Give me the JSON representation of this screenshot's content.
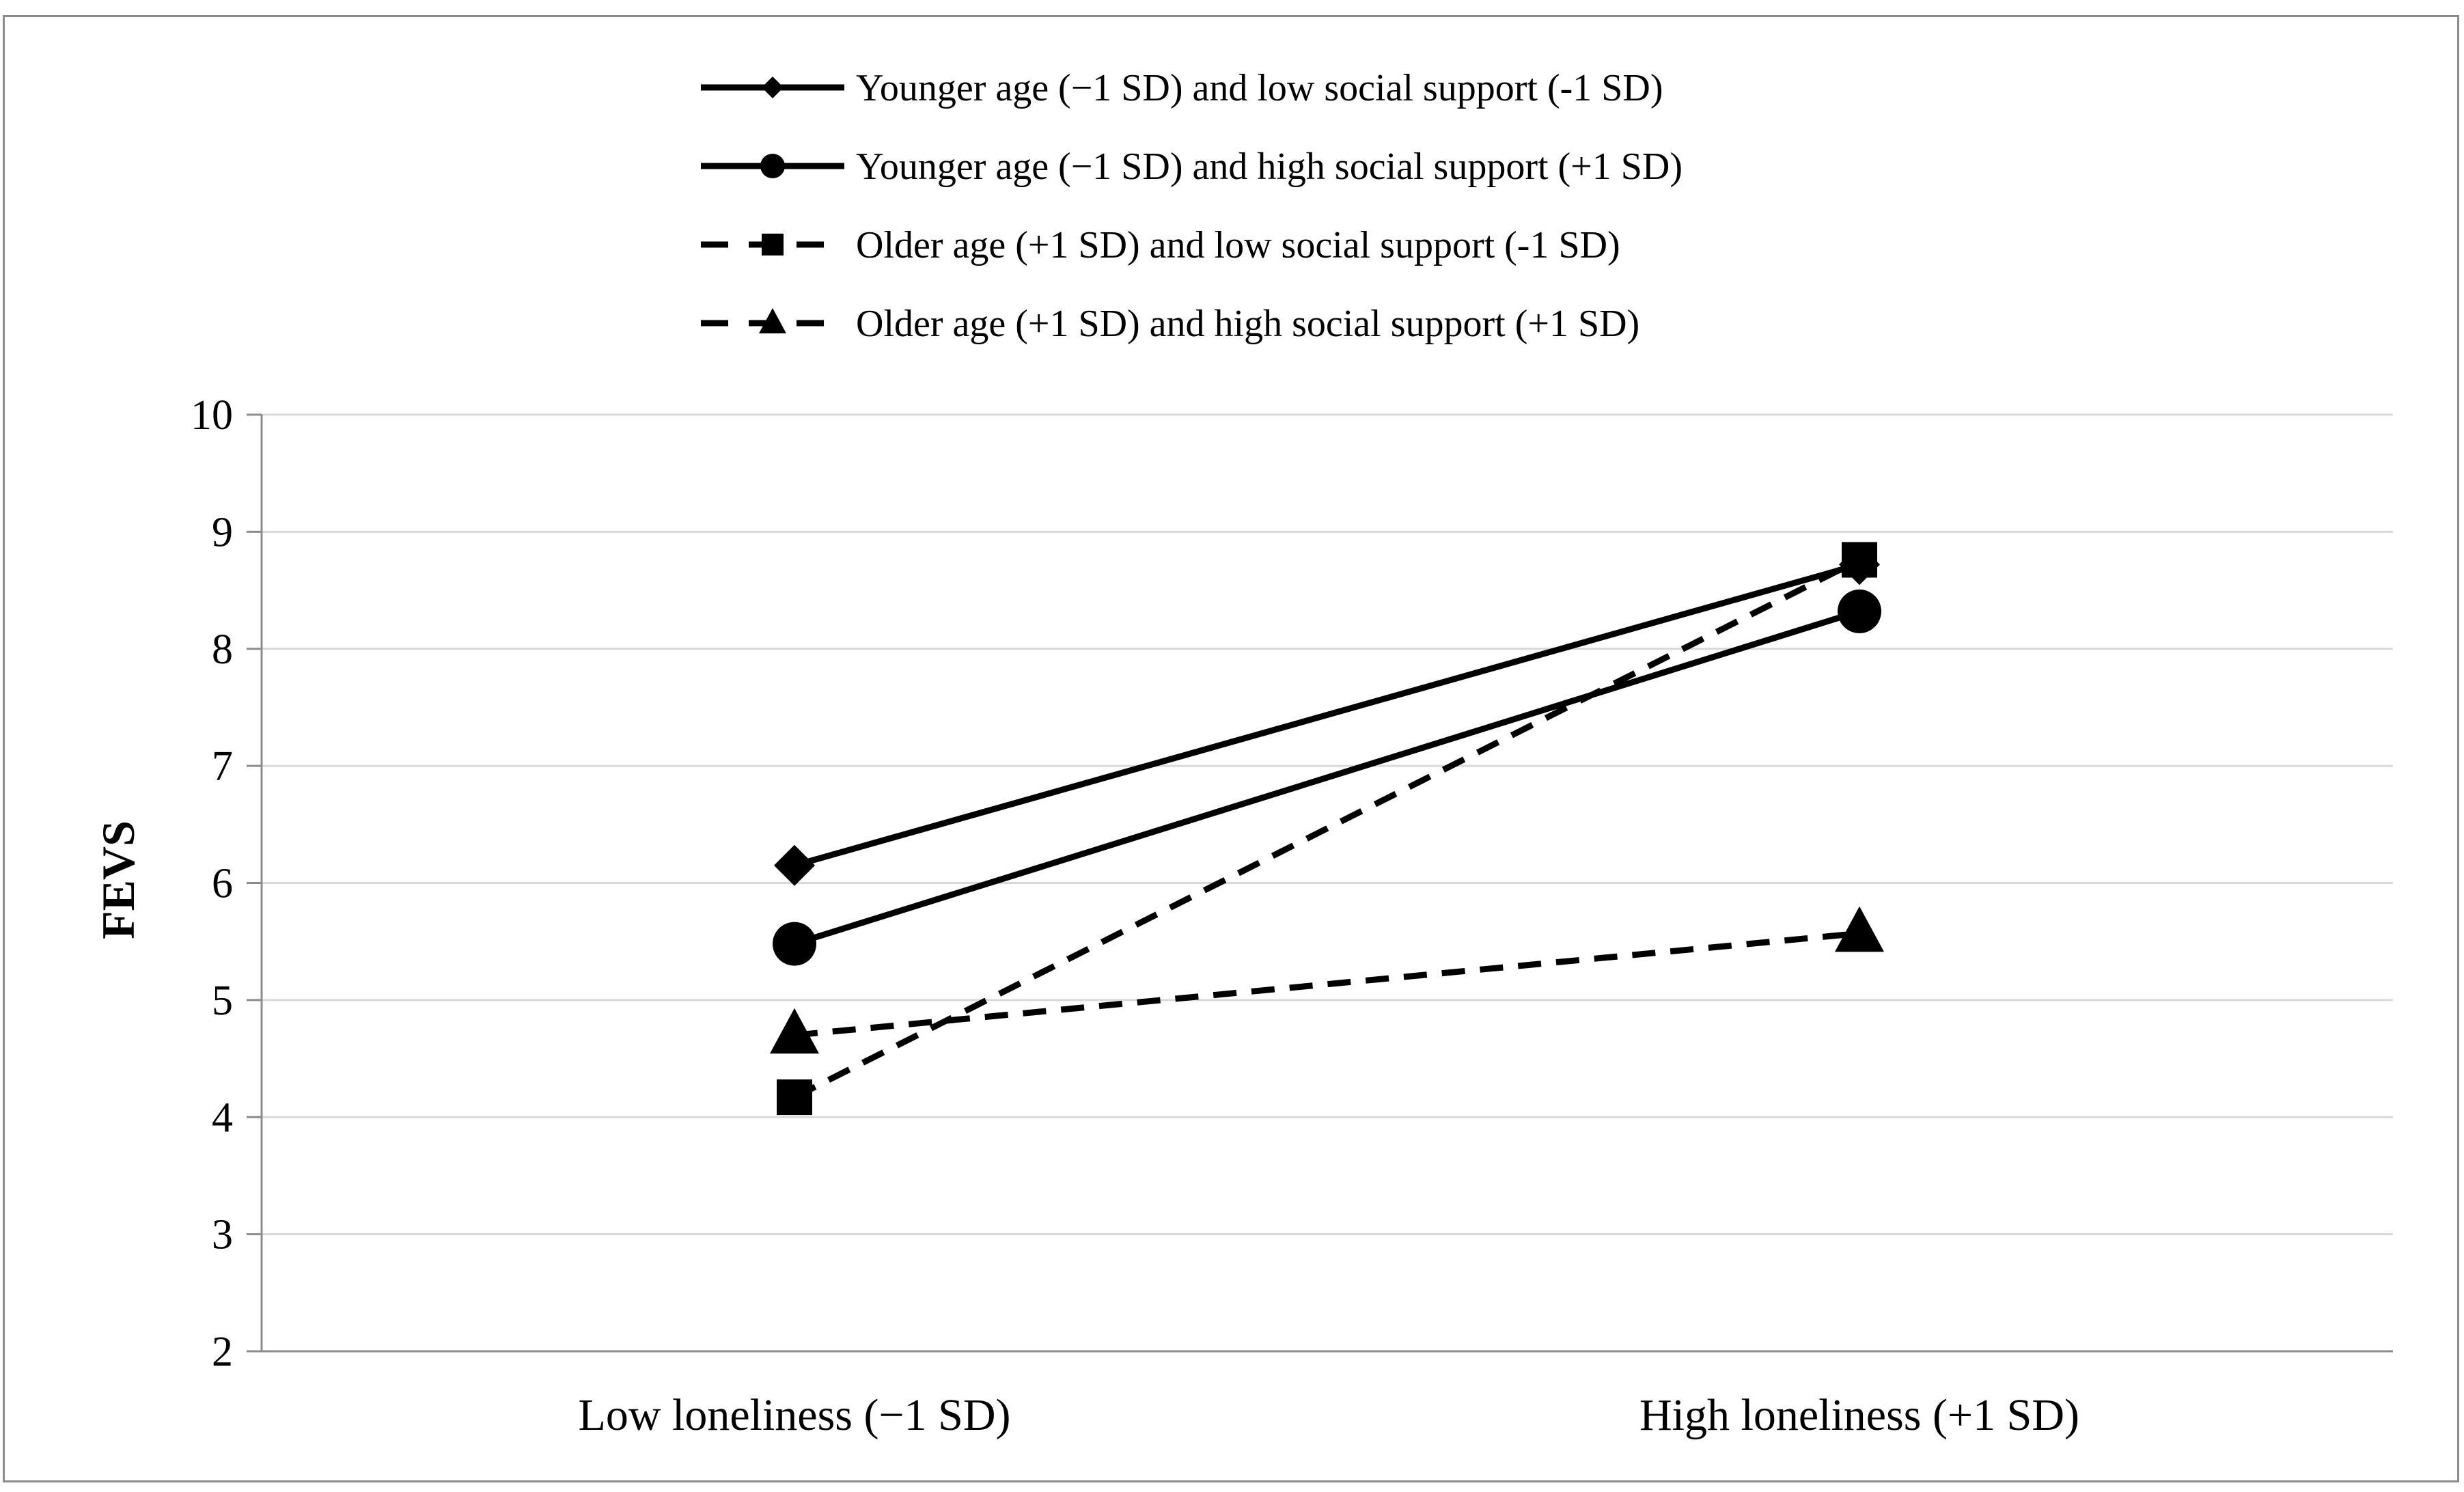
{
  "chart_data": {
    "type": "line",
    "title": "",
    "xlabel": "",
    "ylabel": "FEVS",
    "ylim": [
      2,
      10
    ],
    "yticks": [
      2,
      3,
      4,
      5,
      6,
      7,
      8,
      9,
      10
    ],
    "categories": [
      "Low loneliness (−1 SD)",
      "High loneliness (+1 SD)"
    ],
    "grid": true,
    "legend_position": "top-center",
    "series": [
      {
        "name": "Younger age (−1 SD) and low social support (-1 SD)",
        "values": [
          6.15,
          8.72
        ],
        "line_style": "solid",
        "marker": "diamond",
        "color": "#000000"
      },
      {
        "name": "Younger age (−1 SD) and high social support (+1 SD)",
        "values": [
          5.48,
          8.32
        ],
        "line_style": "solid",
        "marker": "circle",
        "color": "#000000"
      },
      {
        "name": "Older age (+1 SD) and low social support (-1 SD)",
        "values": [
          4.17,
          8.76
        ],
        "line_style": "dashed",
        "marker": "square",
        "color": "#000000"
      },
      {
        "name": "Older age (+1 SD) and high social support (+1 SD)",
        "values": [
          4.7,
          5.57
        ],
        "line_style": "dashed",
        "marker": "triangle",
        "color": "#000000"
      }
    ]
  },
  "colors": {
    "gridline": "#d9d9d9",
    "axis": "#8c8c8c",
    "frame": "#8c8c8c",
    "ink": "#000000"
  }
}
